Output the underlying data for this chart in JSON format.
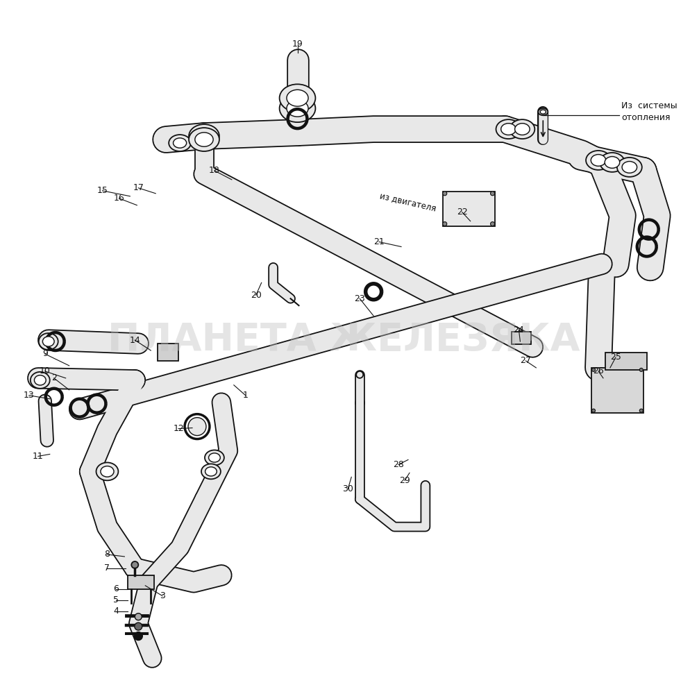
{
  "background_color": "#ffffff",
  "watermark_text": "ПЛАНЕТА ЖЕЛЕЗЯКА",
  "watermark_color": "#c0c0c0",
  "watermark_alpha": 0.4,
  "line_color": "#111111",
  "pipe_fill": "#e8e8e8",
  "pipe_lw": 1.3,
  "label_iz_dvigatelya": "из двигателя",
  "label_iz_sistemy": "Из  системы\nотопления",
  "numbers_data": [
    [
      1,
      355,
      570,
      338,
      555
    ],
    [
      2,
      78,
      545,
      100,
      562
    ],
    [
      3,
      235,
      860,
      210,
      845
    ],
    [
      4,
      168,
      882,
      185,
      882
    ],
    [
      5,
      168,
      866,
      185,
      866
    ],
    [
      6,
      168,
      850,
      185,
      850
    ],
    [
      7,
      155,
      820,
      182,
      820
    ],
    [
      8,
      155,
      800,
      180,
      803
    ],
    [
      9,
      65,
      510,
      100,
      527
    ],
    [
      10,
      65,
      535,
      95,
      545
    ],
    [
      11,
      55,
      658,
      72,
      655
    ],
    [
      12,
      258,
      618,
      278,
      617
    ],
    [
      13,
      42,
      570,
      72,
      575
    ],
    [
      14,
      195,
      490,
      218,
      505
    ],
    [
      15,
      148,
      274,
      188,
      282
    ],
    [
      16,
      172,
      285,
      198,
      295
    ],
    [
      17,
      200,
      270,
      225,
      278
    ],
    [
      18,
      310,
      245,
      335,
      258
    ],
    [
      19,
      430,
      62,
      430,
      75
    ],
    [
      20,
      370,
      425,
      378,
      407
    ],
    [
      21,
      548,
      348,
      580,
      355
    ],
    [
      22,
      668,
      305,
      680,
      318
    ],
    [
      23,
      520,
      430,
      540,
      455
    ],
    [
      24,
      750,
      475,
      752,
      492
    ],
    [
      25,
      890,
      515,
      882,
      530
    ],
    [
      26,
      865,
      535,
      872,
      545
    ],
    [
      27,
      760,
      520,
      775,
      530
    ],
    [
      28,
      576,
      670,
      590,
      663
    ],
    [
      29,
      585,
      693,
      592,
      682
    ],
    [
      30,
      503,
      705,
      508,
      688
    ]
  ]
}
